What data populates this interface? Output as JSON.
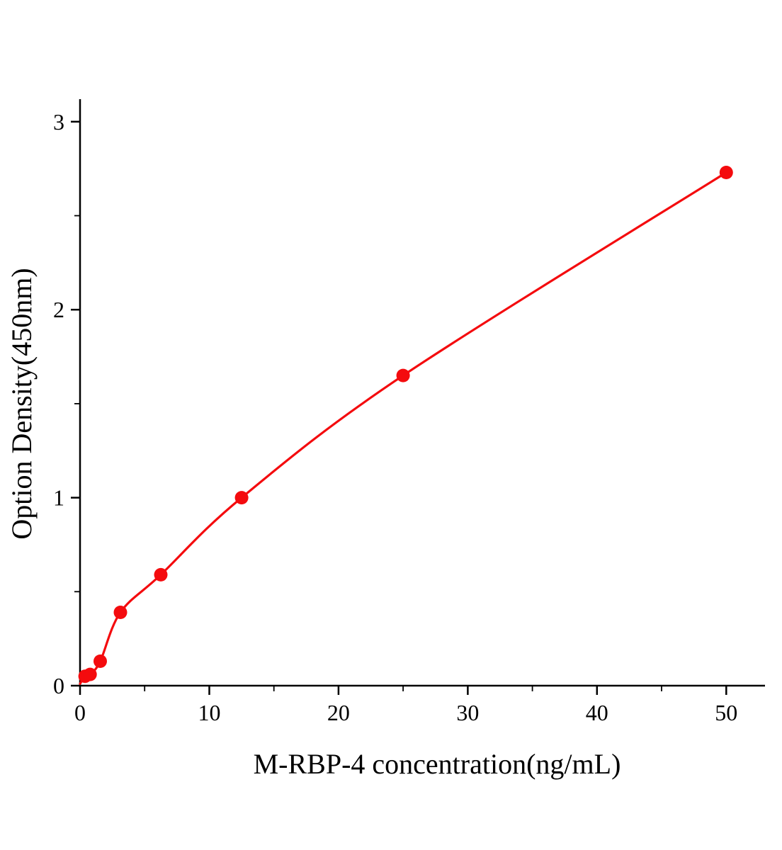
{
  "chart_data": {
    "type": "scatter",
    "title": "",
    "xlabel": "M-RBP-4 concentration(ng/mL)",
    "ylabel": "Option Density(450nm)",
    "x": [
      0.39,
      0.78,
      1.56,
      3.125,
      6.25,
      12.5,
      25,
      50
    ],
    "y": [
      0.05,
      0.06,
      0.13,
      0.39,
      0.59,
      1.0,
      1.65,
      2.73
    ],
    "curve_start": [
      0,
      0.01
    ],
    "xlim": [
      0,
      53
    ],
    "ylim": [
      0,
      3.12
    ],
    "xticks": [
      0,
      10,
      20,
      30,
      40,
      50
    ],
    "yticks": [
      0,
      1,
      2,
      3
    ],
    "x_minor_step": 5,
    "y_minor_step": 0.5,
    "legend": "none",
    "grid": false,
    "marker_color": "#f40b0e",
    "line_color": "#f40b0e",
    "axis_color": "#000000"
  }
}
